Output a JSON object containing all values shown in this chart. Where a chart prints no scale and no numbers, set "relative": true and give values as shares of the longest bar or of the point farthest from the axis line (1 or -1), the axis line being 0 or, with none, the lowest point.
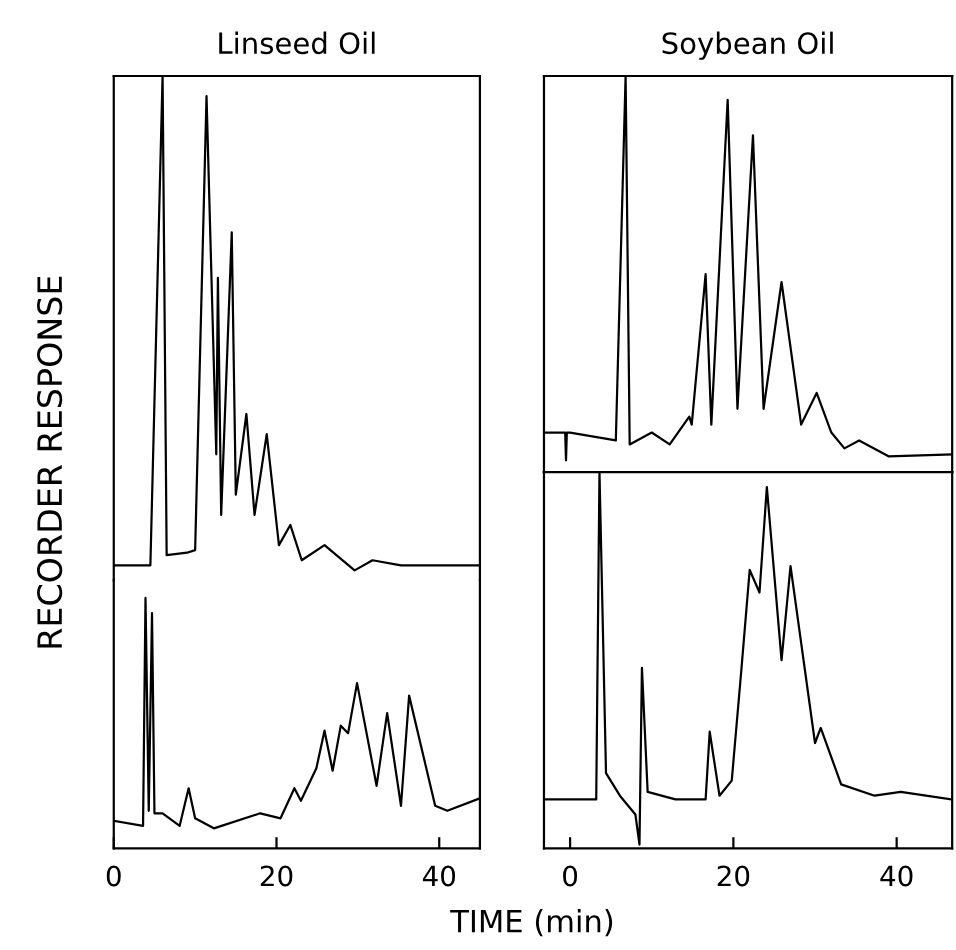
{
  "chart_data": [
    {
      "type": "line",
      "title": "Linseed Oil",
      "ylabel": "RECORDER RESPONSE",
      "relative": true,
      "xlim": [
        0,
        45
      ],
      "tick_labels": false,
      "series": [
        {
          "color": "#000000",
          "x": [
            0,
            4.5,
            6.0,
            6.5,
            9.0,
            10.0,
            11.4,
            12.6,
            12.8,
            13.2,
            14.5,
            15.0,
            16.3,
            17.3,
            18.8,
            20.3,
            21.7,
            23.1,
            25.9,
            29.6,
            31.8,
            35.3,
            45
          ],
          "values": [
            0.03,
            0.03,
            1.0,
            0.05,
            0.055,
            0.06,
            0.96,
            0.25,
            0.6,
            0.13,
            0.69,
            0.17,
            0.33,
            0.13,
            0.29,
            0.07,
            0.11,
            0.04,
            0.07,
            0.02,
            0.04,
            0.03,
            0.03
          ]
        }
      ]
    },
    {
      "type": "line",
      "title": "Soybean Oil",
      "relative": true,
      "xlim": [
        -3.2,
        46.8
      ],
      "tick_labels": false,
      "series": [
        {
          "color": "#000000",
          "x": [
            -3.2,
            -0.6,
            -0.5,
            -0.4,
            0,
            5.6,
            6.8,
            7.3,
            10.0,
            12.2,
            14.6,
            14.9,
            16.6,
            17.3,
            19.3,
            20.5,
            22.4,
            23.7,
            25.9,
            28.3,
            30.2,
            32.0,
            33.6,
            35.4,
            39.0,
            46.8
          ],
          "values": [
            0.1,
            0.1,
            0.03,
            0.1,
            0.1,
            0.08,
            1.0,
            0.07,
            0.1,
            0.07,
            0.14,
            0.12,
            0.5,
            0.12,
            0.94,
            0.16,
            0.85,
            0.16,
            0.48,
            0.12,
            0.2,
            0.1,
            0.06,
            0.08,
            0.04,
            0.045
          ]
        }
      ]
    },
    {
      "type": "line",
      "xlabel": "TIME (min)",
      "relative": true,
      "xlim": [
        0,
        45
      ],
      "xticks": [
        0,
        20,
        40
      ],
      "tick_labels": "x",
      "series": [
        {
          "color": "#000000",
          "x": [
            0,
            3.6,
            3.9,
            4.3,
            4.7,
            5.0,
            6.0,
            8.1,
            9.2,
            10.0,
            12.3,
            18.0,
            20.5,
            22.2,
            23.0,
            24.9,
            25.9,
            26.9,
            27.9,
            28.8,
            29.9,
            32.3,
            33.6,
            35.3,
            36.3,
            39.5,
            41.0,
            45
          ],
          "values": [
            0.11,
            0.09,
            1.0,
            0.15,
            0.94,
            0.14,
            0.14,
            0.09,
            0.24,
            0.12,
            0.08,
            0.14,
            0.12,
            0.24,
            0.19,
            0.32,
            0.47,
            0.31,
            0.49,
            0.46,
            0.66,
            0.25,
            0.54,
            0.17,
            0.61,
            0.17,
            0.15,
            0.2
          ]
        }
      ]
    },
    {
      "type": "line",
      "relative": true,
      "xlim": [
        -3.2,
        46.8
      ],
      "xticks": [
        0,
        20,
        40
      ],
      "tick_labels": "x",
      "series": [
        {
          "color": "#000000",
          "x": [
            -3.2,
            3.2,
            3.6,
            4.4,
            6.1,
            8.0,
            8.5,
            8.8,
            9.5,
            12.9,
            16.6,
            17.1,
            18.3,
            19.8,
            21.0,
            22.0,
            23.2,
            24.1,
            25.9,
            27.0,
            30.0,
            30.7,
            33.2,
            37.3,
            40.5,
            46.8
          ],
          "values": [
            0.13,
            0.13,
            1.0,
            0.2,
            0.14,
            0.09,
            0.01,
            0.48,
            0.15,
            0.13,
            0.13,
            0.31,
            0.14,
            0.18,
            0.48,
            0.74,
            0.68,
            0.96,
            0.5,
            0.75,
            0.28,
            0.32,
            0.17,
            0.14,
            0.15,
            0.13
          ]
        }
      ]
    }
  ]
}
